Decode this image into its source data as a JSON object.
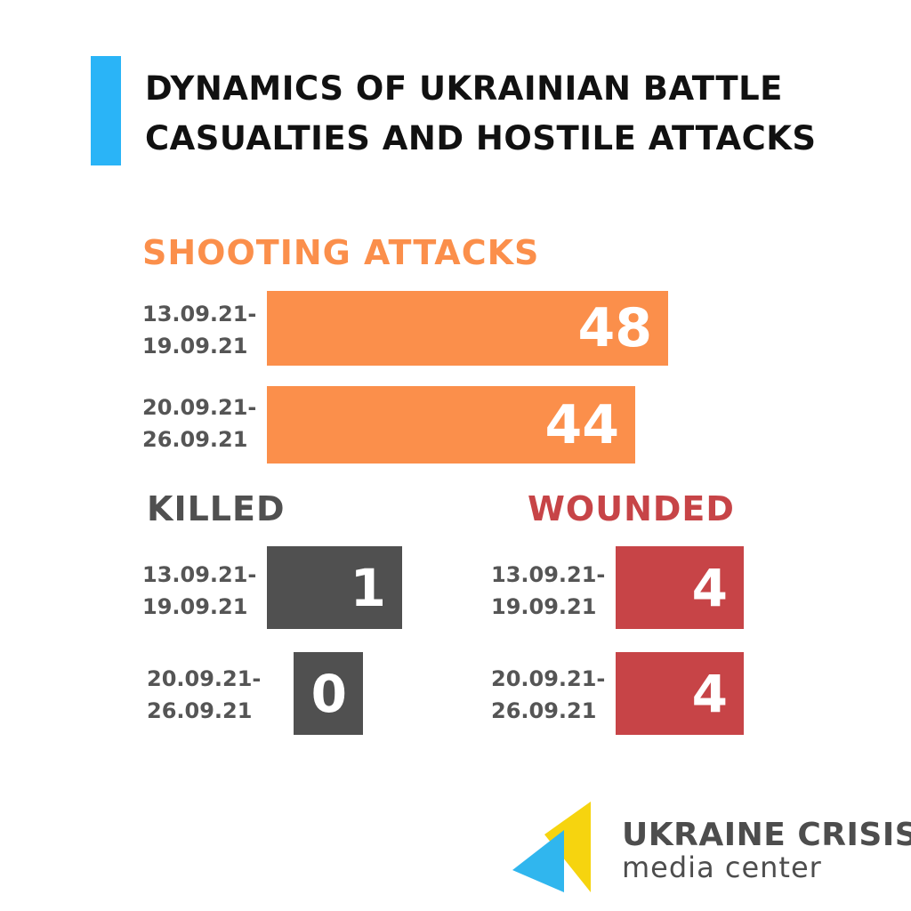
{
  "title": {
    "line1": "DYNAMICS OF UKRAINIAN BATTLE",
    "line2": "CASUALTIES AND HOSTILE ATTACKS"
  },
  "colors": {
    "accent": "#2ab4f7",
    "shooting": "#fb8f4b",
    "killed": "#505050",
    "wounded": "#c74447",
    "logo_yellow": "#f6d40f",
    "logo_blue": "#30b6ee"
  },
  "logo": {
    "line1": "UKRAINE CRISIS",
    "line2": "media center"
  },
  "chart_data": [
    {
      "type": "bar",
      "title": "SHOOTING  ATTACKS",
      "categories": [
        [
          "13.09.21-",
          "19.09.21"
        ],
        [
          "20.09.21-",
          "26.09.21"
        ]
      ],
      "values": [
        48,
        44
      ],
      "color": "#fb8f4b"
    },
    {
      "type": "bar",
      "title": "KILLED",
      "categories": [
        [
          "13.09.21-",
          "19.09.21"
        ],
        [
          "20.09.21-",
          "26.09.21"
        ]
      ],
      "values": [
        1,
        0
      ],
      "color": "#505050"
    },
    {
      "type": "bar",
      "title": "WOUNDED",
      "categories": [
        [
          "13.09.21-",
          "19.09.21"
        ],
        [
          "20.09.21-",
          "26.09.21"
        ]
      ],
      "values": [
        4,
        4
      ],
      "color": "#c74447"
    }
  ]
}
